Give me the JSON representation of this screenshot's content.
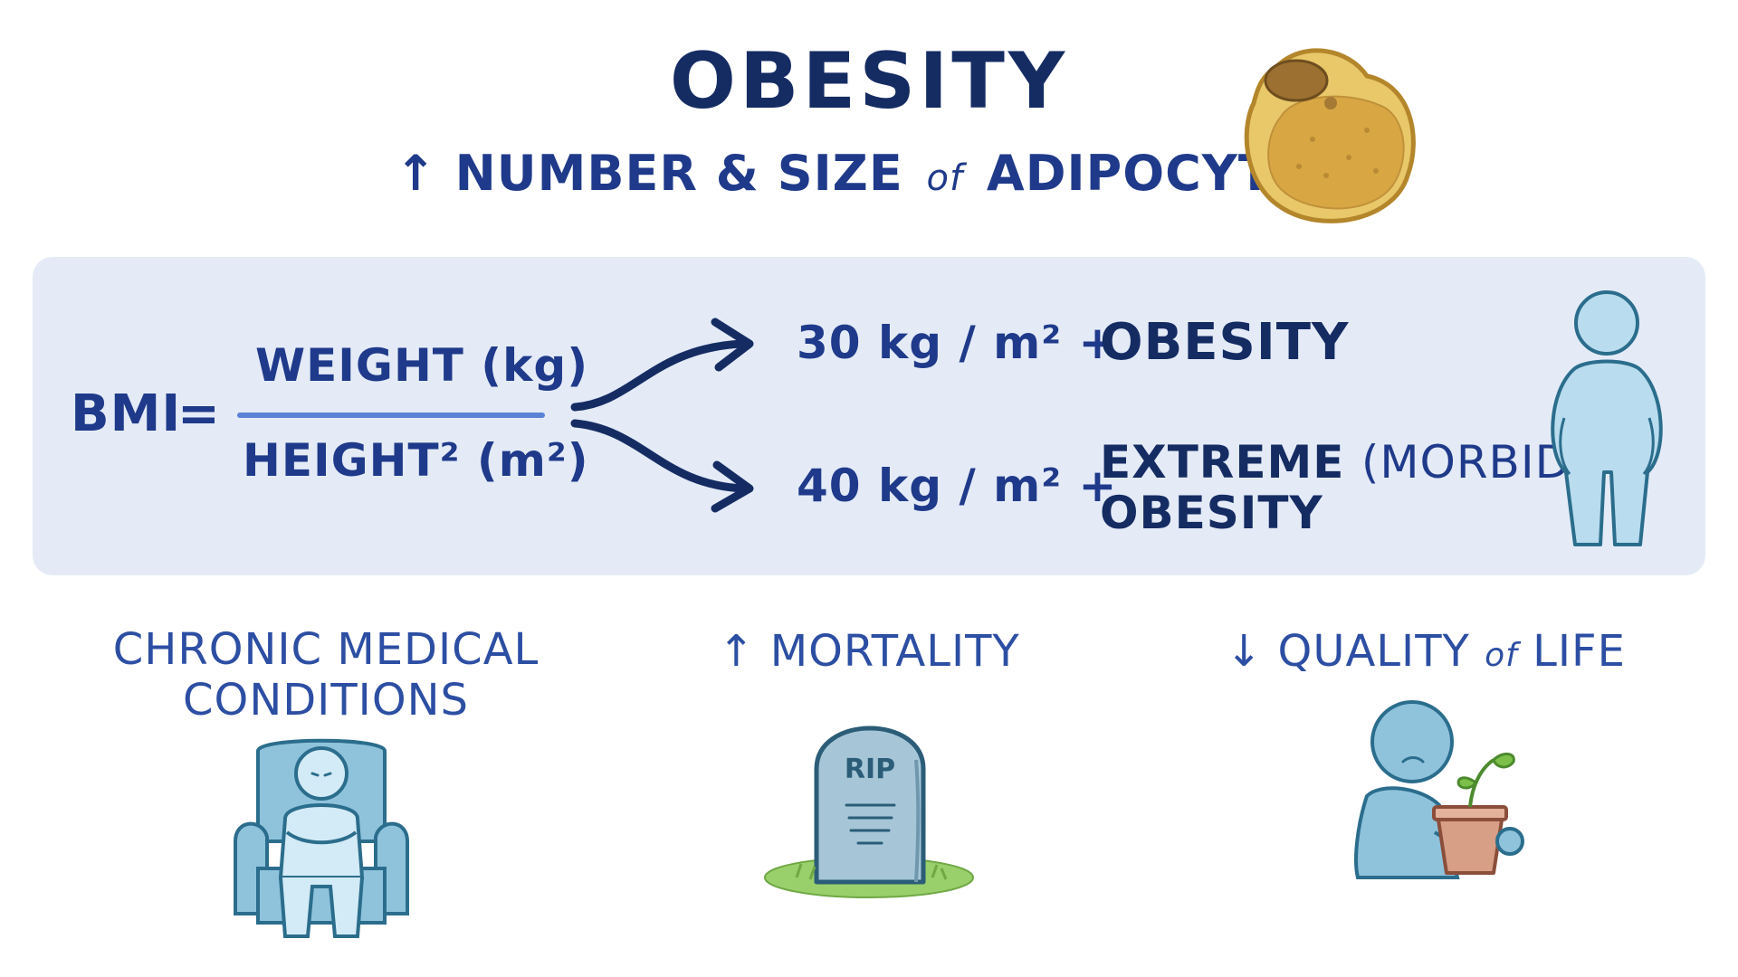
{
  "header": {
    "title": "OBESITY",
    "subtitle_arrow": "↑",
    "subtitle_part1": "NUMBER & SIZE",
    "subtitle_of": "of",
    "subtitle_part2": "ADIPOCYTES"
  },
  "bmi": {
    "label": "BMI",
    "equals": "=",
    "numerator": "WEIGHT (kg)",
    "denominator": "HEIGHT² (m²)"
  },
  "thresholds": [
    {
      "value": "30 kg / m² +",
      "label": "OBESITY"
    },
    {
      "value": "40 kg / m² +",
      "label_bold": "EXTREME",
      "label_paren": "(MORBID)",
      "label_line2": "OBESITY"
    }
  ],
  "consequences": {
    "chronic_line1": "CHRONIC MEDICAL",
    "chronic_line2": "CONDITIONS",
    "mortality_arrow": "↑",
    "mortality": "MORTALITY",
    "quality_arrow": "↓",
    "quality_part1": "QUALITY",
    "quality_of": "of",
    "quality_part2": "LIFE",
    "tombstone_text": "RIP"
  },
  "colors": {
    "title": "#152c63",
    "text": "#1f3a8a",
    "panel_bg": "#e4ebf7",
    "figure_fill": "#b9dcee",
    "figure_stroke": "#2b6d8c",
    "fat_cell": "#d8b04a"
  },
  "icons": [
    "adipocyte-icon",
    "arrow-up-icon",
    "arrow-down-icon",
    "branch-arrows-icon",
    "person-icon",
    "armchair-person-icon",
    "tombstone-icon",
    "sad-person-plant-icon"
  ]
}
